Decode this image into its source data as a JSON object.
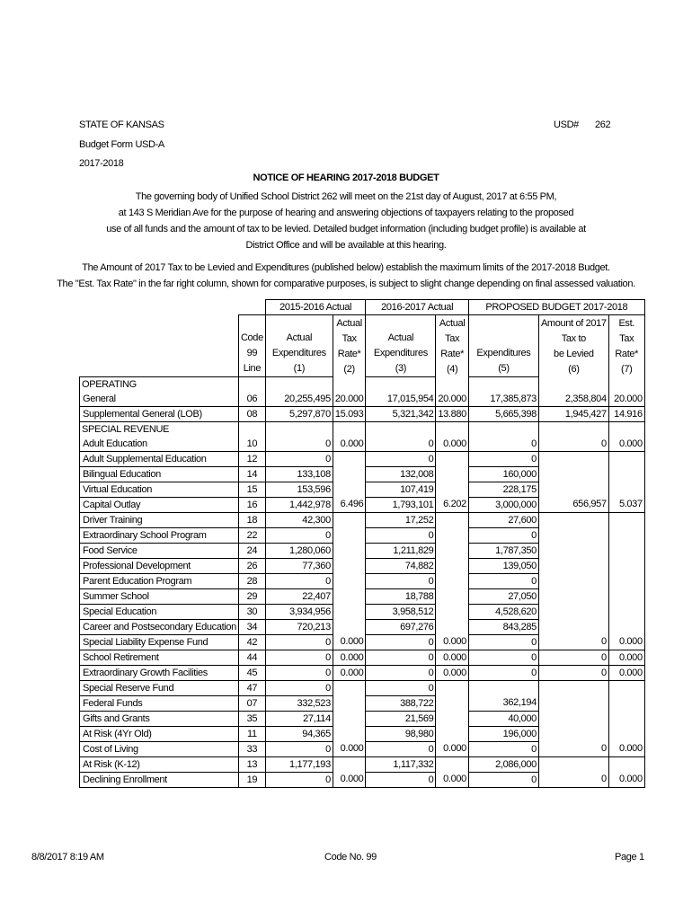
{
  "header": {
    "state": "STATE OF KANSAS",
    "form": "Budget Form USD-A",
    "year": "2017-2018",
    "usd_label": "USD#",
    "usd_number": "262"
  },
  "title": "NOTICE OF HEARING 2017-2018 BUDGET",
  "paragraph1": [
    "The governing body of Unified School District 262 will meet on the 21st day of August, 2017 at 6:55 PM,",
    "at 143 S Meridian Ave for the purpose of hearing and answering objections of taxpayers relating to the proposed",
    "use of all funds and the amount of tax to be levied.  Detailed budget information (including budget profile) is available at",
    "District Office and will be available at this hearing."
  ],
  "paragraph2": [
    "The Amount of 2017 Tax to be Levied and Expenditures (published below) establish the maximum limits of the 2017-2018 Budget.",
    "The \"Est. Tax Rate\" in the far right column, shown for comparative purposes, is subject to slight change depending on final assessed valuation."
  ],
  "table": {
    "groups": [
      "2015-2016 Actual",
      "2016-2017 Actual",
      "PROPOSED BUDGET 2017-2018"
    ],
    "code_header": [
      "Code",
      "99",
      "Line"
    ],
    "columns": [
      [
        "Actual",
        "Expenditures",
        "(1)"
      ],
      [
        "Actual",
        "Tax",
        "Rate*",
        "(2)"
      ],
      [
        "Actual",
        "Expenditures",
        "(3)"
      ],
      [
        "Actual",
        "Tax",
        "Rate*",
        "(4)"
      ],
      [
        "Expenditures",
        "(5)"
      ],
      [
        "Amount of 2017",
        "Tax to",
        "be Levied",
        "(6)"
      ],
      [
        "Est.",
        "Tax",
        "Rate*",
        "(7)"
      ]
    ],
    "rows": [
      {
        "section": "OPERATING"
      },
      {
        "label": "General",
        "code": "06",
        "v": [
          "20,255,495",
          "20.000",
          "17,015,954",
          "20.000",
          "17,385,873",
          "2,358,804",
          "20.000"
        ]
      },
      {
        "label": "Supplemental General (LOB)",
        "code": "08",
        "v": [
          "5,297,870",
          "15.093",
          "5,321,342",
          "13.880",
          "5,665,398",
          "1,945,427",
          "14.916"
        ]
      },
      {
        "section": "SPECIAL REVENUE"
      },
      {
        "label": "Adult Education",
        "code": "10",
        "v": [
          "0",
          "0.000",
          "0",
          "0.000",
          "0",
          "0",
          "0.000"
        ]
      },
      {
        "label": "Adult Supplemental Education",
        "code": "12",
        "v": [
          "0",
          "",
          "0",
          "",
          "0",
          "",
          ""
        ]
      },
      {
        "label": "Bilingual Education",
        "code": "14",
        "v": [
          "133,108",
          "",
          "132,008",
          "",
          "160,000",
          "",
          ""
        ]
      },
      {
        "label": "Virtual Education",
        "code": "15",
        "v": [
          "153,596",
          "",
          "107,419",
          "",
          "228,175",
          "",
          ""
        ]
      },
      {
        "label": "Capital Outlay",
        "code": "16",
        "v": [
          "1,442,978",
          "6.496",
          "1,793,101",
          "6.202",
          "3,000,000",
          "656,957",
          "5.037"
        ]
      },
      {
        "label": "Driver Training",
        "code": "18",
        "v": [
          "42,300",
          "",
          "17,252",
          "",
          "27,600",
          "",
          ""
        ]
      },
      {
        "label": "Extraordinary School Program",
        "code": "22",
        "v": [
          "0",
          "",
          "0",
          "",
          "0",
          "",
          ""
        ]
      },
      {
        "label": "Food Service",
        "code": "24",
        "v": [
          "1,280,060",
          "",
          "1,211,829",
          "",
          "1,787,350",
          "",
          ""
        ]
      },
      {
        "label": "Professional Development",
        "code": "26",
        "v": [
          "77,360",
          "",
          "74,882",
          "",
          "139,050",
          "",
          ""
        ]
      },
      {
        "label": "Parent Education Program",
        "code": "28",
        "v": [
          "0",
          "",
          "0",
          "",
          "0",
          "",
          ""
        ]
      },
      {
        "label": "Summer School",
        "code": "29",
        "v": [
          "22,407",
          "",
          "18,788",
          "",
          "27,050",
          "",
          ""
        ]
      },
      {
        "label": "Special Education",
        "code": "30",
        "v": [
          "3,934,956",
          "",
          "3,958,512",
          "",
          "4,528,620",
          "",
          ""
        ]
      },
      {
        "label": "Career and Postsecondary Education",
        "code": "34",
        "v": [
          "720,213",
          "",
          "697,276",
          "",
          "843,285",
          "",
          ""
        ]
      },
      {
        "label": "Special Liability Expense Fund",
        "code": "42",
        "v": [
          "0",
          "0.000",
          "0",
          "0.000",
          "0",
          "0",
          "0.000"
        ]
      },
      {
        "label": "School Retirement",
        "code": "44",
        "v": [
          "0",
          "0.000",
          "0",
          "0.000",
          "0",
          "0",
          "0.000"
        ]
      },
      {
        "label": "Extraordinary Growth Facilities",
        "code": "45",
        "v": [
          "0",
          "0.000",
          "0",
          "0.000",
          "0",
          "0",
          "0.000"
        ]
      },
      {
        "label": "Special Reserve Fund",
        "code": "47",
        "v": [
          "0",
          "",
          "0",
          "",
          "",
          "",
          ""
        ]
      },
      {
        "label": "Federal Funds",
        "code": "07",
        "v": [
          "332,523",
          "",
          "388,722",
          "",
          "362,194",
          "",
          ""
        ]
      },
      {
        "label": "Gifts and Grants",
        "code": "35",
        "v": [
          "27,114",
          "",
          "21,569",
          "",
          "40,000",
          "",
          ""
        ]
      },
      {
        "label": "At Risk (4Yr Old)",
        "code": "11",
        "v": [
          "94,365",
          "",
          "98,980",
          "",
          "196,000",
          "",
          ""
        ]
      },
      {
        "label": "Cost of Living",
        "code": "33",
        "v": [
          "0",
          "0.000",
          "0",
          "0.000",
          "0",
          "0",
          "0.000"
        ]
      },
      {
        "label": "At Risk (K-12)",
        "code": "13",
        "v": [
          "1,177,193",
          "",
          "1,117,332",
          "",
          "2,086,000",
          "",
          ""
        ]
      },
      {
        "label": "Declining Enrollment",
        "code": "19",
        "v": [
          "0",
          "0.000",
          "0",
          "0.000",
          "0",
          "0",
          "0.000"
        ]
      }
    ]
  },
  "footer": {
    "datetime": "8/8/2017  8:19 AM",
    "code": "Code No. 99",
    "page": "Page 1"
  }
}
